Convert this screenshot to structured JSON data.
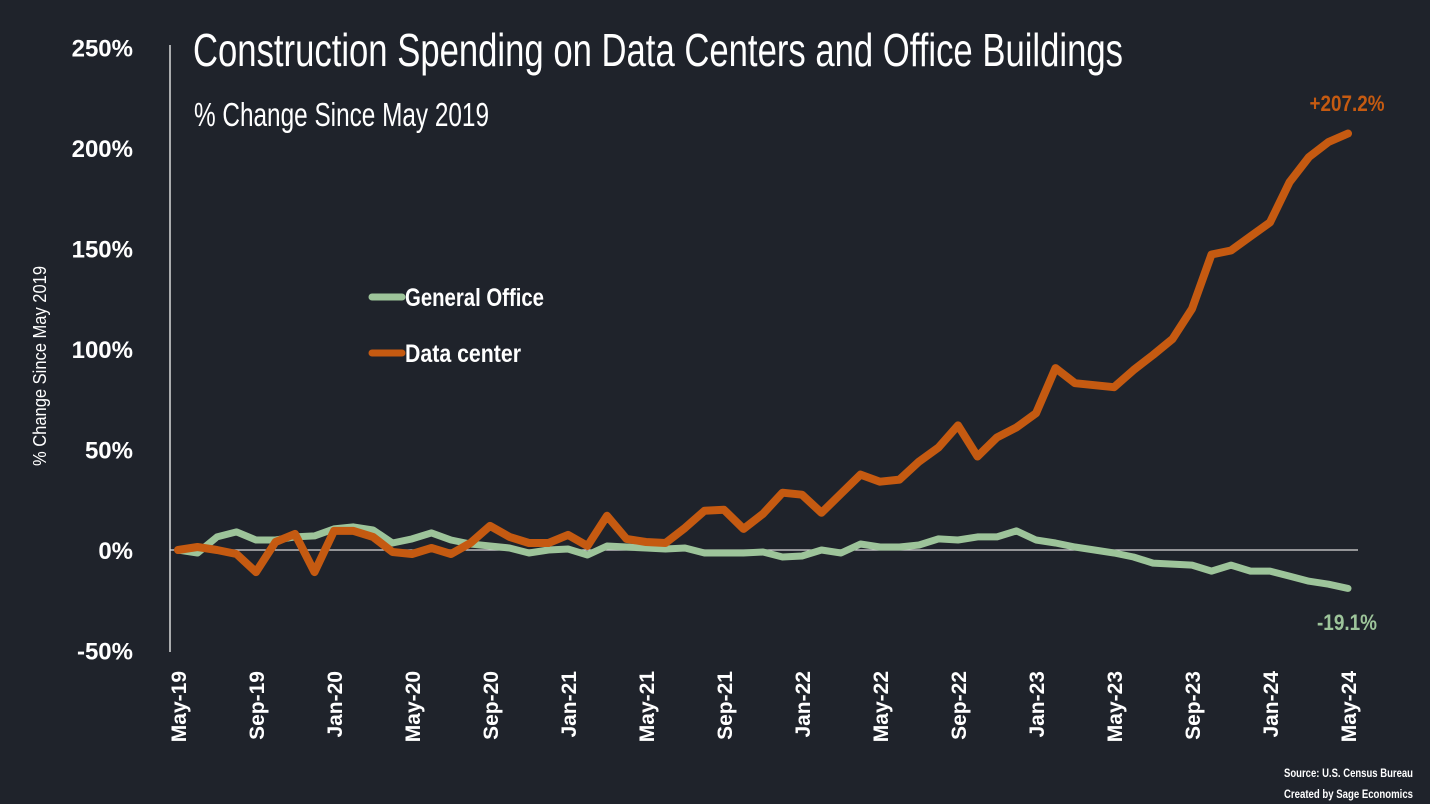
{
  "chart_data": {
    "type": "line",
    "title": "Construction Spending on Data Centers and Office Buildings",
    "subtitle": "% Change Since May 2019",
    "xlabel": "",
    "ylabel": "% Change Since May 2019",
    "ylim": [
      -50,
      250
    ],
    "yticks": [
      "-50%",
      "0%",
      "50%",
      "100%",
      "150%",
      "200%",
      "250%"
    ],
    "ytick_values": [
      -50,
      0,
      50,
      100,
      150,
      200,
      250
    ],
    "xtick_labels": [
      "May-19",
      "Sep-19",
      "Jan-20",
      "May-20",
      "Sep-20",
      "Jan-21",
      "May-21",
      "Sep-21",
      "Jan-22",
      "May-22",
      "Sep-22",
      "Jan-23",
      "May-23",
      "Sep-23",
      "Jan-24",
      "May-24"
    ],
    "x_start": "May-19",
    "x_end": "May-24",
    "grid": false,
    "legend_position": "center-left",
    "series": [
      {
        "name": "General Office",
        "color": "#9dc49a",
        "values": [
          0,
          -1.5,
          6.5,
          9,
          5,
          5,
          6.5,
          7,
          10.5,
          11.5,
          10,
          3.5,
          5.5,
          8.5,
          5,
          3,
          2,
          1,
          -1.5,
          0,
          0.5,
          -2.5,
          2,
          1.5,
          1,
          0.5,
          1,
          -1.5,
          -1.5,
          -1.5,
          -1,
          -3.5,
          -3,
          0,
          -1.5,
          3,
          1.5,
          1.5,
          2.5,
          5.5,
          5,
          6.5,
          6.5,
          9.5,
          5,
          3.5,
          1.5,
          0,
          -1.5,
          -3.5,
          -6.5,
          -7,
          -7.5,
          -10.5,
          -7.5,
          -10.5,
          -10.5,
          -13,
          -15.5,
          -17,
          -19.1
        ],
        "end_label": "-19.1%"
      },
      {
        "name": "Data center",
        "color": "#c55a11",
        "values": [
          0,
          1.5,
          0,
          -2,
          -11,
          4,
          8,
          -11,
          9.5,
          9.5,
          6.5,
          -1,
          -2,
          1,
          -2,
          3.5,
          12,
          6.5,
          3.5,
          3.5,
          7.5,
          2,
          17,
          5.5,
          4,
          3.5,
          11,
          19.5,
          20,
          10.5,
          18,
          28.5,
          27.5,
          18.5,
          28,
          37.5,
          34,
          35,
          44,
          51,
          62,
          46.5,
          56,
          61,
          68,
          90.5,
          83,
          82,
          81,
          89.5,
          97,
          105,
          120,
          147,
          149,
          156,
          163,
          183,
          195.5,
          203,
          207.2
        ],
        "end_label": "+207.2%"
      }
    ],
    "source": "Source: U.S. Census Bureau",
    "credit": "Created by Sage Economics"
  }
}
